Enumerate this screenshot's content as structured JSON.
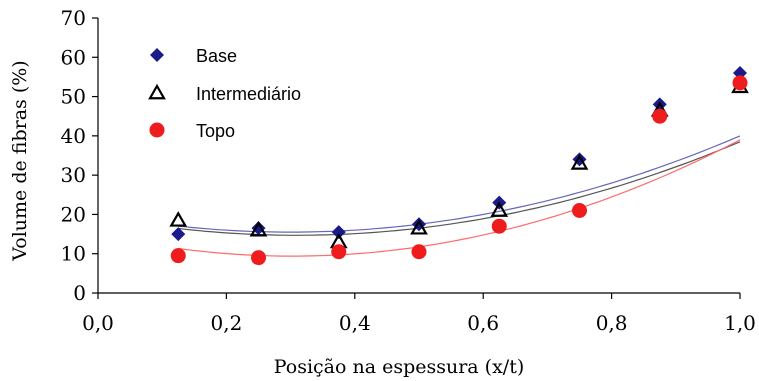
{
  "chart_data": {
    "type": "scatter",
    "title": "",
    "xlabel": "Posição na espessura (x/t)",
    "ylabel": "Volume de fibras (%)",
    "xlim": [
      0,
      1
    ],
    "ylim": [
      0,
      70
    ],
    "x_ticks": [
      0,
      0.2,
      0.4,
      0.6,
      0.8,
      1.0
    ],
    "x_tick_labels": [
      "0,0",
      "0,2",
      "0,4",
      "0,6",
      "0,8",
      "1,0"
    ],
    "y_ticks": [
      0,
      10,
      20,
      30,
      40,
      50,
      60,
      70
    ],
    "y_tick_labels": [
      "0",
      "10",
      "20",
      "30",
      "40",
      "50",
      "60",
      "70"
    ],
    "grid": false,
    "legend_position": "top-left",
    "series": [
      {
        "name": "Base",
        "marker": "diamond",
        "color": "#1a1a8c",
        "x": [
          0.125,
          0.25,
          0.375,
          0.5,
          0.625,
          0.75,
          0.875,
          1.0
        ],
        "y": [
          15,
          16.5,
          15.5,
          17.5,
          23,
          34,
          48,
          56
        ],
        "trend": [
          50,
          -30,
          20
        ]
      },
      {
        "name": "Intermediário",
        "marker": "triangle-open",
        "color": "#000000",
        "x": [
          0.125,
          0.25,
          0.375,
          0.5,
          0.625,
          0.75,
          0.875,
          1.0
        ],
        "y": [
          18.5,
          16,
          13,
          16.5,
          21,
          33,
          46.5,
          52.5
        ],
        "trend": [
          50,
          -31,
          19.5
        ]
      },
      {
        "name": "Topo",
        "marker": "circle",
        "color": "#ee1c1c",
        "x": [
          0.125,
          0.25,
          0.375,
          0.5,
          0.625,
          0.75,
          0.875,
          1.0
        ],
        "y": [
          9.5,
          9,
          10.5,
          10.5,
          17,
          21,
          45,
          53.5
        ],
        "trend": [
          61,
          -37,
          15
        ]
      }
    ]
  }
}
